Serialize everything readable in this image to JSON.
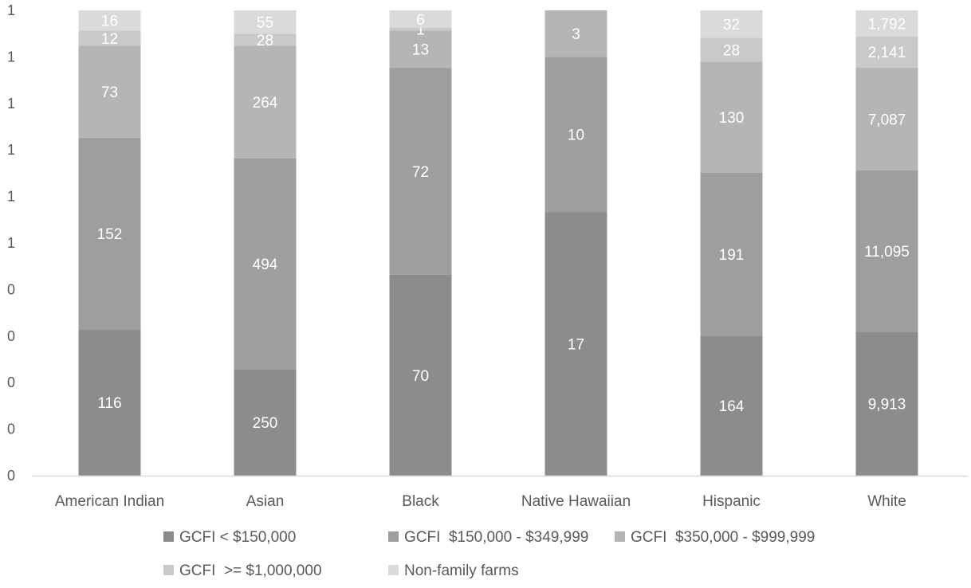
{
  "chart_data": {
    "type": "bar",
    "stacked": "percent",
    "categories": [
      "American Indian",
      "Asian",
      "Black",
      "Native Hawaiian",
      "Hispanic",
      "White"
    ],
    "series": [
      {
        "name": "GCFI < $150,000",
        "values": [
          116,
          250,
          70,
          17,
          164,
          9913
        ],
        "labels": [
          "116",
          "250",
          "70",
          "17",
          "164",
          "9,913"
        ],
        "color": "#8c8c8c"
      },
      {
        "name": "GCFI  $150,000 - $349,999",
        "values": [
          152,
          494,
          72,
          10,
          191,
          11095
        ],
        "labels": [
          "152",
          "494",
          "72",
          "10",
          "191",
          "11,095"
        ],
        "color": "#9e9e9e"
      },
      {
        "name": "GCFI  $350,000 - $999,999",
        "values": [
          73,
          264,
          13,
          3,
          130,
          7087
        ],
        "labels": [
          "73",
          "264",
          "13",
          "3",
          "130",
          "7,087"
        ],
        "color": "#b5b5b5"
      },
      {
        "name": "GCFI  >= $1,000,000",
        "values": [
          12,
          28,
          1,
          0,
          28,
          2141
        ],
        "labels": [
          "12",
          "28",
          "1",
          "",
          "28",
          "2,141"
        ],
        "color": "#c9c9c9"
      },
      {
        "name": "Non-family farms",
        "values": [
          16,
          55,
          6,
          0,
          32,
          1792
        ],
        "labels": [
          "16",
          "55",
          "6",
          "",
          "32",
          "1,792"
        ],
        "color": "#dadada"
      }
    ],
    "y_tick_labels": [
      "0",
      "0",
      "0",
      "0",
      "0",
      "1",
      "1",
      "1",
      "1",
      "1",
      "1"
    ],
    "ylim": [
      0,
      1
    ],
    "title": "",
    "xlabel": "",
    "ylabel": "",
    "legend_position": "bottom",
    "grid": false
  }
}
